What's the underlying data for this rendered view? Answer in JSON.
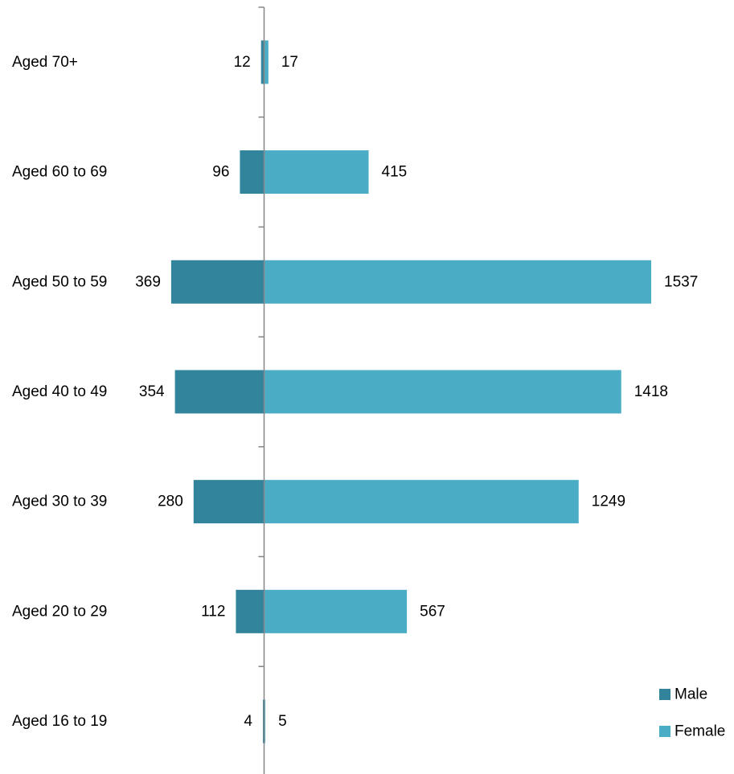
{
  "chart_data": {
    "type": "bar",
    "orientation": "horizontal",
    "layout": "diverging",
    "categories": [
      "Aged 16 to 19",
      "Aged 20 to 29",
      "Aged 30 to 39",
      "Aged 40 to 49",
      "Aged 50 to 59",
      "Aged 60 to 69",
      "Aged 70+"
    ],
    "series": [
      {
        "name": "Male",
        "values": [
          4,
          112,
          280,
          354,
          369,
          96,
          12
        ],
        "color": "#31849b",
        "direction": "left"
      },
      {
        "name": "Female",
        "values": [
          5,
          567,
          1249,
          1418,
          1537,
          415,
          17
        ],
        "color": "#4bacc6",
        "direction": "right"
      }
    ],
    "title": "",
    "xlabel": "",
    "ylabel": "",
    "xlim": [
      -1200,
      1700
    ],
    "grid": false,
    "legend": "bottom-right",
    "data_labels": true
  }
}
